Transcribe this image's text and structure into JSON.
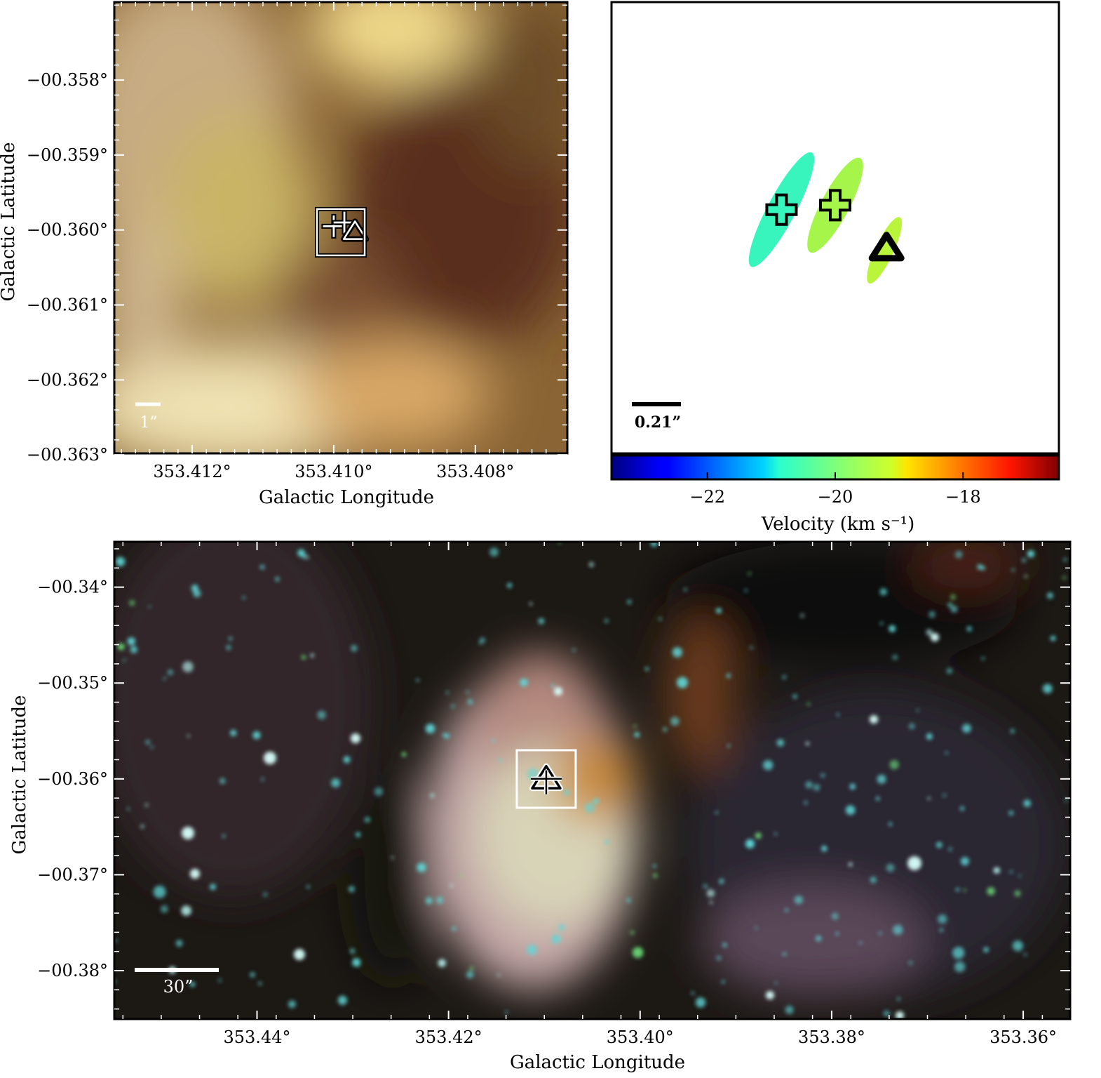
{
  "panels": {
    "zoom": {
      "xlabel": "Galactic Longitude",
      "ylabel": "Galactic Latitude",
      "xticks": [
        "353.412°",
        "353.410°",
        "353.408°"
      ],
      "yticks": [
        "−00.358°",
        "−00.359°",
        "−00.360°",
        "−00.361°",
        "−00.362°",
        "−00.363°"
      ],
      "scalebar": "1”"
    },
    "maser": {
      "scalebar": "0.21”",
      "colorbar_label": "Velocity (km s⁻¹)",
      "colorbar_ticks": [
        "−22",
        "−20",
        "−18"
      ]
    },
    "wide": {
      "xlabel": "Galactic Longitude",
      "ylabel": "Galactic Latitude",
      "xticks": [
        "353.44°",
        "353.42°",
        "353.40°",
        "353.38°",
        "353.36°"
      ],
      "yticks": [
        "−00.34°",
        "−00.35°",
        "−00.36°",
        "−00.37°",
        "−00.38°"
      ],
      "scalebar": "30”"
    }
  },
  "chart_data": [
    {
      "type": "scatter",
      "panel": "zoom",
      "title": "",
      "xlabel": "Galactic Longitude",
      "ylabel": "Galactic Latitude",
      "xlim": [
        353.4131,
        353.4067
      ],
      "ylim": [
        -0.36298,
        -0.35696
      ],
      "grid": false,
      "background": "three-colour infrared image (brown/yellow tones)",
      "markers": [
        {
          "marker": "plus",
          "x": 353.41,
          "y": -0.35995
        },
        {
          "marker": "plus",
          "x": 353.40985,
          "y": -0.3599
        },
        {
          "marker": "triangle",
          "x": 353.4097,
          "y": -0.36002
        },
        {
          "marker": "square",
          "x": 353.4099,
          "y": -0.36003
        }
      ]
    },
    {
      "type": "scatter",
      "panel": "maser",
      "title": "",
      "grid": false,
      "colorbar": {
        "label": "Velocity (km s⁻¹)",
        "range": [
          -23.5,
          -16.5
        ],
        "ticks": [
          -22,
          -20,
          -18
        ],
        "cmap": "jet"
      },
      "spots": [
        {
          "marker": "plus",
          "velocity": -20.8
        },
        {
          "marker": "plus",
          "velocity": -19.7
        },
        {
          "marker": "triangle",
          "velocity": -19.6
        }
      ],
      "colors": {
        "spot1": "#38f5bd",
        "spot2": "#a6f54a",
        "spot3": "#b9f53a"
      }
    },
    {
      "type": "scatter",
      "panel": "wide",
      "title": "",
      "xlabel": "Galactic Longitude",
      "ylabel": "Galactic Latitude",
      "xlim": [
        353.4549,
        353.3551
      ],
      "ylim": [
        -0.38505,
        -0.33527
      ],
      "grid": false,
      "background": "three-colour infrared image (stars and nebula)",
      "markers": [
        {
          "marker": "triangle",
          "x": 353.4098,
          "y": -0.35999
        },
        {
          "marker": "plus",
          "x": 353.4098,
          "y": -0.35999
        },
        {
          "marker": "square",
          "x": 353.4098,
          "y": -0.36001
        }
      ]
    }
  ]
}
